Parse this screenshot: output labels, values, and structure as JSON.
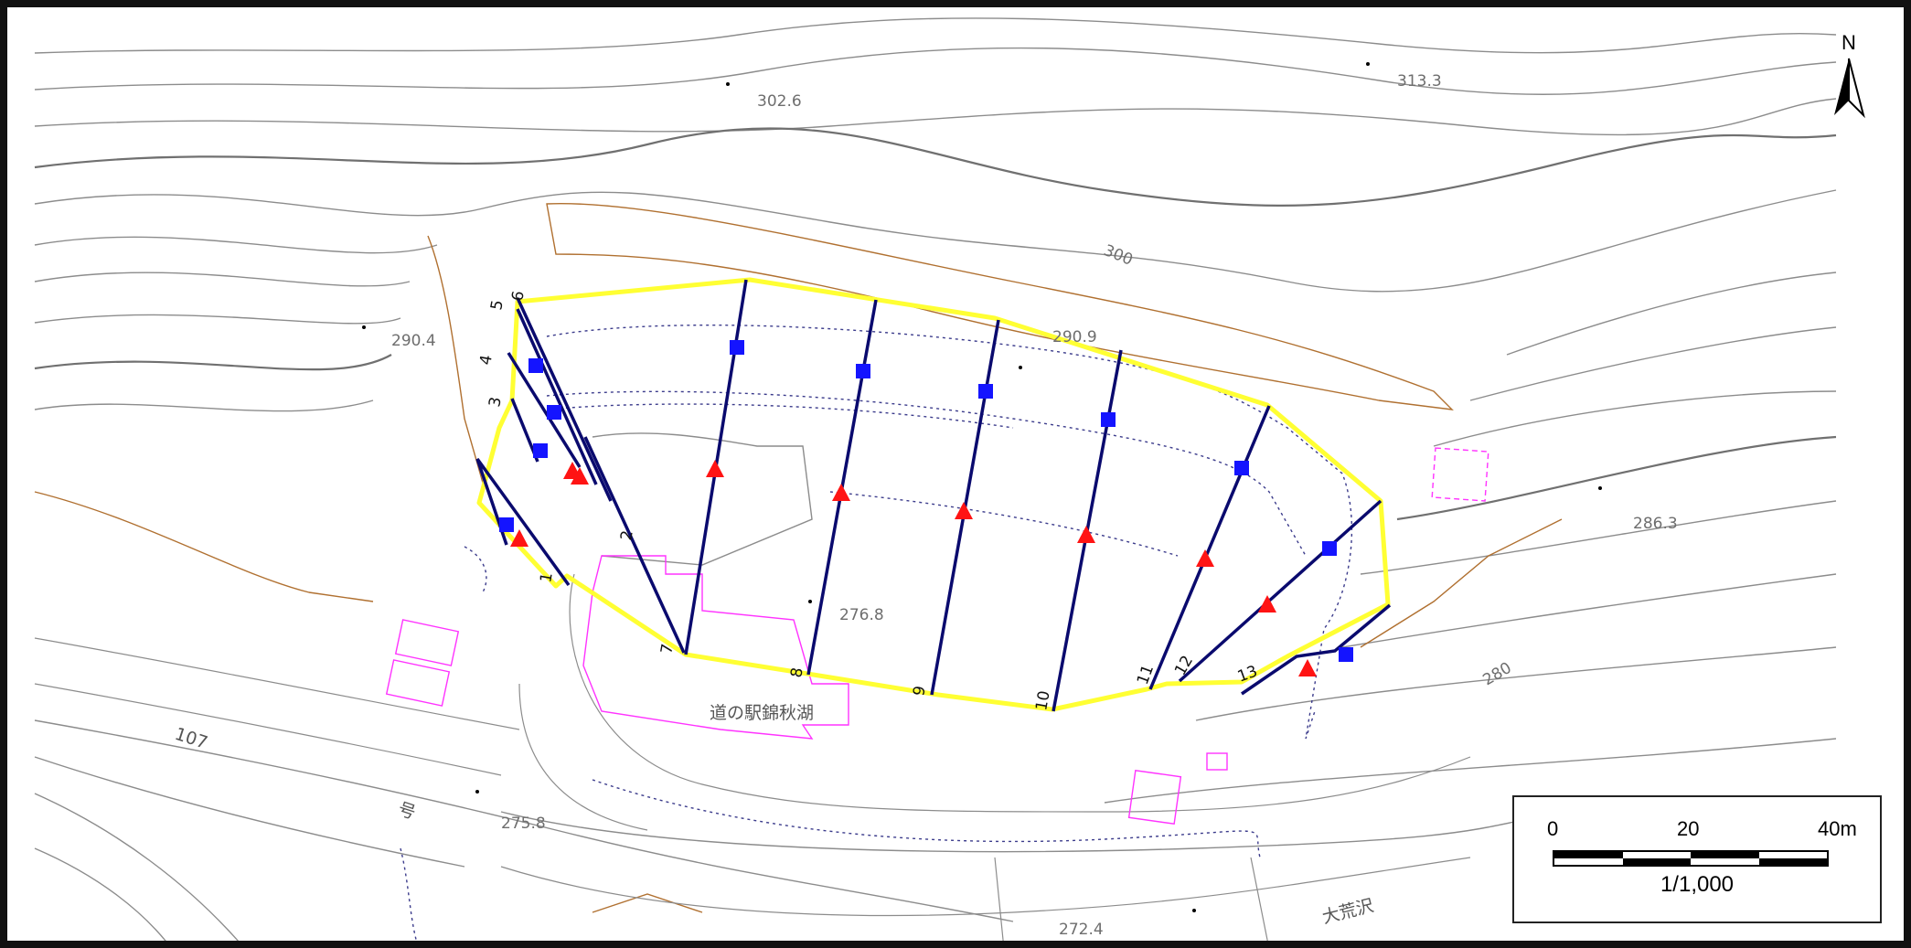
{
  "map": {
    "scale_labels": {
      "zero": "0",
      "mid": "20",
      "end": "40m"
    },
    "scale_ratio": "1/1,000",
    "north_label": "N",
    "elevations": [
      "302.6",
      "313.3",
      "290.4",
      "290.9",
      "286.3",
      "276.8",
      "275.8",
      "272.4"
    ],
    "contour_labels": [
      "300",
      "280"
    ],
    "place_labels": [
      "道の駅錦秋湖",
      "大荒沢",
      "107",
      "号"
    ],
    "survey_line_numbers": [
      "1",
      "2",
      "3",
      "4",
      "5",
      "6",
      "7",
      "8",
      "9",
      "10",
      "11",
      "12",
      "13"
    ],
    "colors": {
      "boundary": "#ffff33",
      "survey_line": "#0a0a6e",
      "square_marker": "#1414ff",
      "triangle_marker": "#ff1414",
      "contour": "#8c8c8c",
      "old_contour": "#b07030",
      "building": "#ff33ff"
    },
    "legend_symbols": [
      "square-marker-icon",
      "triangle-marker-icon",
      "north-arrow-icon"
    ]
  }
}
